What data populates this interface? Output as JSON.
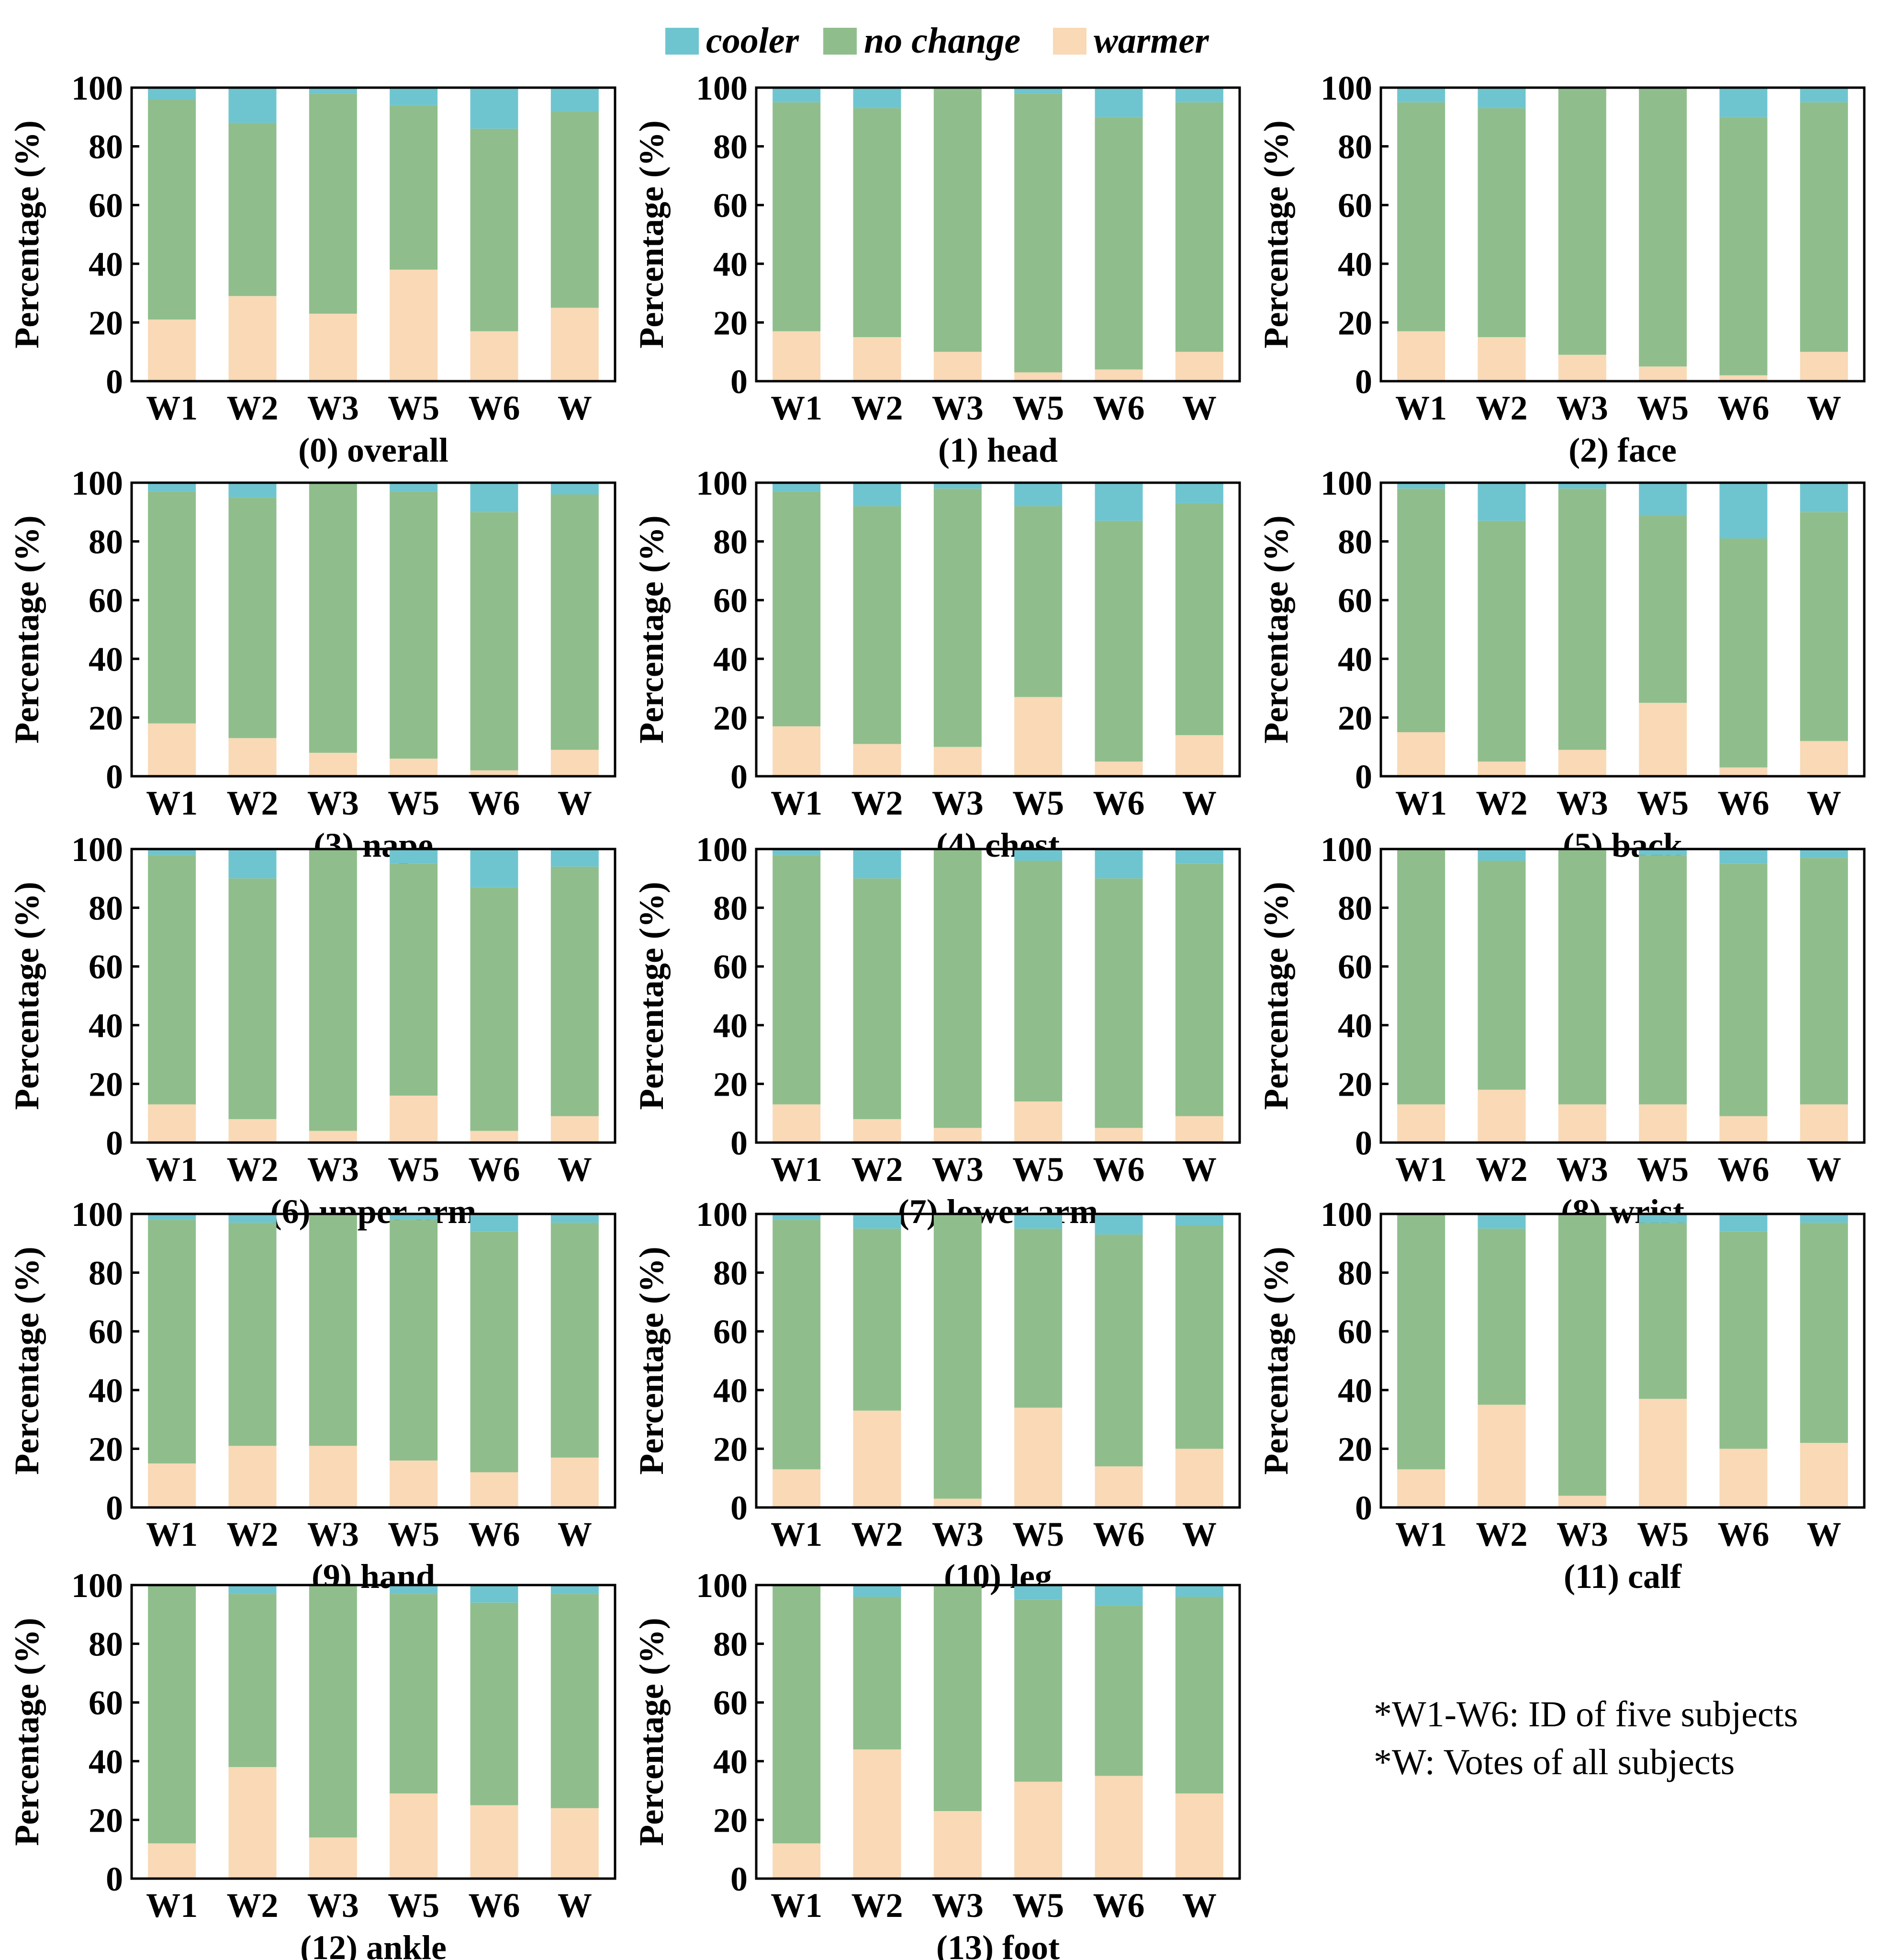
{
  "colors": {
    "cooler": "#6fc5cf",
    "no_change": "#8fbe8c",
    "warmer": "#f9d9b6"
  },
  "legend": [
    {
      "key": "cooler",
      "label": "cooler"
    },
    {
      "key": "no_change",
      "label": "no change"
    },
    {
      "key": "warmer",
      "label": "warmer"
    }
  ],
  "footnote": {
    "line1": "*W1-W6: ID of five subjects",
    "line2": "*W: Votes of  all subjects"
  },
  "chart_data": [
    {
      "type": "bar",
      "stacked": true,
      "title": "(0) overall",
      "ylabel": "Percentage (%)",
      "ylim": [
        0,
        100
      ],
      "yticks": [
        "0",
        "20",
        "40",
        "60",
        "80",
        "100"
      ],
      "categories": [
        "W1",
        "W2",
        "W3",
        "W5",
        "W6",
        "W"
      ],
      "series": [
        {
          "name": "warmer",
          "values": [
            21,
            29,
            23,
            38,
            17,
            25
          ]
        },
        {
          "name": "no change",
          "values": [
            75,
            59,
            75,
            56,
            69,
            67
          ]
        },
        {
          "name": "cooler",
          "values": [
            4,
            12,
            2,
            6,
            14,
            8
          ]
        }
      ]
    },
    {
      "type": "bar",
      "stacked": true,
      "title": "(1) head",
      "ylabel": "Percentage (%)",
      "ylim": [
        0,
        100
      ],
      "yticks": [
        "0",
        "20",
        "40",
        "60",
        "80",
        "100"
      ],
      "categories": [
        "W1",
        "W2",
        "W3",
        "W5",
        "W6",
        "W"
      ],
      "series": [
        {
          "name": "warmer",
          "values": [
            17,
            15,
            10,
            3,
            4,
            10
          ]
        },
        {
          "name": "no change",
          "values": [
            78,
            78,
            90,
            95,
            86,
            85
          ]
        },
        {
          "name": "cooler",
          "values": [
            5,
            7,
            0,
            2,
            10,
            5
          ]
        }
      ]
    },
    {
      "type": "bar",
      "stacked": true,
      "title": "(2) face",
      "ylabel": "Percentage (%)",
      "ylim": [
        0,
        100
      ],
      "yticks": [
        "0",
        "20",
        "40",
        "60",
        "80",
        "100"
      ],
      "categories": [
        "W1",
        "W2",
        "W3",
        "W5",
        "W6",
        "W"
      ],
      "series": [
        {
          "name": "warmer",
          "values": [
            17,
            15,
            9,
            5,
            2,
            10
          ]
        },
        {
          "name": "no change",
          "values": [
            78,
            78,
            91,
            95,
            88,
            85
          ]
        },
        {
          "name": "cooler",
          "values": [
            5,
            7,
            0,
            0,
            10,
            5
          ]
        }
      ]
    },
    {
      "type": "bar",
      "stacked": true,
      "title": "(3) nape",
      "ylabel": "Percentage (%)",
      "ylim": [
        0,
        100
      ],
      "yticks": [
        "0",
        "20",
        "40",
        "60",
        "80",
        "100"
      ],
      "categories": [
        "W1",
        "W2",
        "W3",
        "W5",
        "W6",
        "W"
      ],
      "series": [
        {
          "name": "warmer",
          "values": [
            18,
            13,
            8,
            6,
            2,
            9
          ]
        },
        {
          "name": "no change",
          "values": [
            79,
            82,
            92,
            91,
            88,
            87
          ]
        },
        {
          "name": "cooler",
          "values": [
            3,
            5,
            0,
            3,
            10,
            4
          ]
        }
      ]
    },
    {
      "type": "bar",
      "stacked": true,
      "title": "(4) chest",
      "ylabel": "Percentage (%)",
      "ylim": [
        0,
        100
      ],
      "yticks": [
        "0",
        "20",
        "40",
        "60",
        "80",
        "100"
      ],
      "categories": [
        "W1",
        "W2",
        "W3",
        "W5",
        "W6",
        "W"
      ],
      "series": [
        {
          "name": "warmer",
          "values": [
            17,
            11,
            10,
            27,
            5,
            14
          ]
        },
        {
          "name": "no change",
          "values": [
            80,
            81,
            88,
            65,
            82,
            79
          ]
        },
        {
          "name": "cooler",
          "values": [
            3,
            8,
            2,
            8,
            13,
            7
          ]
        }
      ]
    },
    {
      "type": "bar",
      "stacked": true,
      "title": "(5) back",
      "ylabel": "Percentage (%)",
      "ylim": [
        0,
        100
      ],
      "yticks": [
        "0",
        "20",
        "40",
        "60",
        "80",
        "100"
      ],
      "categories": [
        "W1",
        "W2",
        "W3",
        "W5",
        "W6",
        "W"
      ],
      "series": [
        {
          "name": "warmer",
          "values": [
            15,
            5,
            9,
            25,
            3,
            12
          ]
        },
        {
          "name": "no change",
          "values": [
            83,
            82,
            89,
            64,
            78,
            78
          ]
        },
        {
          "name": "cooler",
          "values": [
            2,
            13,
            2,
            11,
            19,
            10
          ]
        }
      ]
    },
    {
      "type": "bar",
      "stacked": true,
      "title": "(6) upper arm",
      "ylabel": "Percentage (%)",
      "ylim": [
        0,
        100
      ],
      "yticks": [
        "0",
        "20",
        "40",
        "60",
        "80",
        "100"
      ],
      "categories": [
        "W1",
        "W2",
        "W3",
        "W5",
        "W6",
        "W"
      ],
      "series": [
        {
          "name": "warmer",
          "values": [
            13,
            8,
            4,
            16,
            4,
            9
          ]
        },
        {
          "name": "no change",
          "values": [
            85,
            82,
            96,
            79,
            83,
            85
          ]
        },
        {
          "name": "cooler",
          "values": [
            2,
            10,
            0,
            5,
            13,
            6
          ]
        }
      ]
    },
    {
      "type": "bar",
      "stacked": true,
      "title": "(7) lower arm",
      "ylabel": "Percentage (%)",
      "ylim": [
        0,
        100
      ],
      "yticks": [
        "0",
        "20",
        "40",
        "60",
        "80",
        "100"
      ],
      "categories": [
        "W1",
        "W2",
        "W3",
        "W5",
        "W6",
        "W"
      ],
      "series": [
        {
          "name": "warmer",
          "values": [
            13,
            8,
            5,
            14,
            5,
            9
          ]
        },
        {
          "name": "no change",
          "values": [
            85,
            82,
            95,
            82,
            85,
            86
          ]
        },
        {
          "name": "cooler",
          "values": [
            2,
            10,
            0,
            4,
            10,
            5
          ]
        }
      ]
    },
    {
      "type": "bar",
      "stacked": true,
      "title": "(8) wrist",
      "ylabel": "Percentage (%)",
      "ylim": [
        0,
        100
      ],
      "yticks": [
        "0",
        "20",
        "40",
        "60",
        "80",
        "100"
      ],
      "categories": [
        "W1",
        "W2",
        "W3",
        "W5",
        "W6",
        "W"
      ],
      "series": [
        {
          "name": "warmer",
          "values": [
            13,
            18,
            13,
            13,
            9,
            13
          ]
        },
        {
          "name": "no change",
          "values": [
            87,
            78,
            87,
            85,
            86,
            84
          ]
        },
        {
          "name": "cooler",
          "values": [
            0,
            4,
            0,
            2,
            5,
            3
          ]
        }
      ]
    },
    {
      "type": "bar",
      "stacked": true,
      "title": "(9) hand",
      "ylabel": "Percentage (%)",
      "ylim": [
        0,
        100
      ],
      "yticks": [
        "0",
        "20",
        "40",
        "60",
        "80",
        "100"
      ],
      "categories": [
        "W1",
        "W2",
        "W3",
        "W5",
        "W6",
        "W"
      ],
      "series": [
        {
          "name": "warmer",
          "values": [
            15,
            21,
            21,
            16,
            12,
            17
          ]
        },
        {
          "name": "no change",
          "values": [
            83,
            76,
            79,
            82,
            82,
            80
          ]
        },
        {
          "name": "cooler",
          "values": [
            2,
            3,
            0,
            2,
            6,
            3
          ]
        }
      ]
    },
    {
      "type": "bar",
      "stacked": true,
      "title": "(10) leg",
      "ylabel": "Percentage (%)",
      "ylim": [
        0,
        100
      ],
      "yticks": [
        "0",
        "20",
        "40",
        "60",
        "80",
        "100"
      ],
      "categories": [
        "W1",
        "W2",
        "W3",
        "W5",
        "W6",
        "W"
      ],
      "series": [
        {
          "name": "warmer",
          "values": [
            13,
            33,
            3,
            34,
            14,
            20
          ]
        },
        {
          "name": "no change",
          "values": [
            85,
            62,
            97,
            61,
            79,
            76
          ]
        },
        {
          "name": "cooler",
          "values": [
            2,
            5,
            0,
            5,
            7,
            4
          ]
        }
      ]
    },
    {
      "type": "bar",
      "stacked": true,
      "title": "(11) calf",
      "ylabel": "Percentage (%)",
      "ylim": [
        0,
        100
      ],
      "yticks": [
        "0",
        "20",
        "40",
        "60",
        "80",
        "100"
      ],
      "categories": [
        "W1",
        "W2",
        "W3",
        "W5",
        "W6",
        "W"
      ],
      "series": [
        {
          "name": "warmer",
          "values": [
            13,
            35,
            4,
            37,
            20,
            22
          ]
        },
        {
          "name": "no change",
          "values": [
            87,
            60,
            96,
            60,
            74,
            75
          ]
        },
        {
          "name": "cooler",
          "values": [
            0,
            5,
            0,
            3,
            6,
            3
          ]
        }
      ]
    },
    {
      "type": "bar",
      "stacked": true,
      "title": "(12) ankle",
      "ylabel": "Percentage (%)",
      "ylim": [
        0,
        100
      ],
      "yticks": [
        "0",
        "20",
        "40",
        "60",
        "80",
        "100"
      ],
      "categories": [
        "W1",
        "W2",
        "W3",
        "W5",
        "W6",
        "W"
      ],
      "series": [
        {
          "name": "warmer",
          "values": [
            12,
            38,
            14,
            29,
            25,
            24
          ]
        },
        {
          "name": "no change",
          "values": [
            88,
            59,
            86,
            68,
            69,
            73
          ]
        },
        {
          "name": "cooler",
          "values": [
            0,
            3,
            0,
            3,
            6,
            3
          ]
        }
      ]
    },
    {
      "type": "bar",
      "stacked": true,
      "title": "(13) foot",
      "ylabel": "Percentage (%)",
      "ylim": [
        0,
        100
      ],
      "yticks": [
        "0",
        "20",
        "40",
        "60",
        "80",
        "100"
      ],
      "categories": [
        "W1",
        "W2",
        "W3",
        "W5",
        "W6",
        "W"
      ],
      "series": [
        {
          "name": "warmer",
          "values": [
            12,
            44,
            23,
            33,
            35,
            29
          ]
        },
        {
          "name": "no change",
          "values": [
            88,
            52,
            77,
            62,
            58,
            67
          ]
        },
        {
          "name": "cooler",
          "values": [
            0,
            4,
            0,
            5,
            7,
            4
          ]
        }
      ]
    }
  ]
}
